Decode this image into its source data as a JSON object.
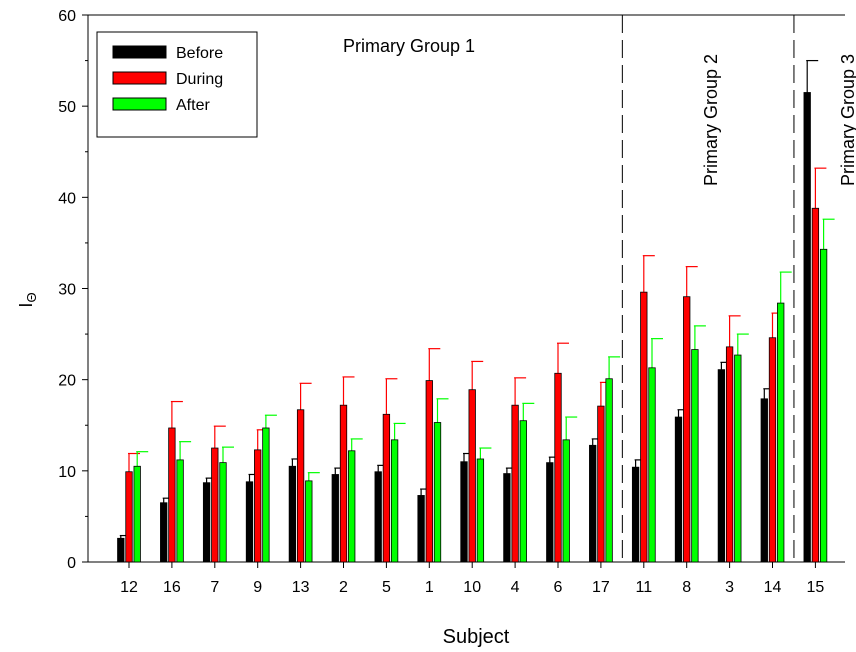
{
  "chart_data": {
    "type": "bar",
    "xlabel": "Subject",
    "ylabel": "I",
    "ylabel_subscript": "Θ",
    "ylim": [
      0,
      60
    ],
    "yticks": [
      0,
      10,
      20,
      30,
      40,
      50,
      60
    ],
    "categories": [
      "12",
      "16",
      "7",
      "9",
      "13",
      "2",
      "5",
      "1",
      "10",
      "4",
      "6",
      "17",
      "11",
      "8",
      "3",
      "14",
      "15"
    ],
    "series": [
      {
        "name": "Before",
        "color": "#000000",
        "values": [
          2.6,
          6.5,
          8.7,
          8.8,
          10.5,
          9.6,
          9.9,
          7.3,
          11.0,
          9.7,
          10.9,
          12.8,
          10.4,
          15.9,
          21.1,
          17.9,
          51.5
        ],
        "errors": [
          0.3,
          0.5,
          0.5,
          0.8,
          0.8,
          0.7,
          0.7,
          0.7,
          0.9,
          0.6,
          0.6,
          0.7,
          0.8,
          0.8,
          0.8,
          1.1,
          3.5
        ]
      },
      {
        "name": "During",
        "color": "#ff0000",
        "values": [
          9.9,
          14.7,
          12.5,
          12.3,
          16.7,
          17.2,
          16.2,
          19.9,
          18.9,
          17.2,
          20.7,
          17.1,
          29.6,
          29.1,
          23.6,
          24.6,
          38.8
        ],
        "errors": [
          2.0,
          2.9,
          2.4,
          2.2,
          2.9,
          3.1,
          3.9,
          3.5,
          3.1,
          3.0,
          3.3,
          2.6,
          4.0,
          3.3,
          3.4,
          2.7,
          4.4
        ]
      },
      {
        "name": "After",
        "color": "#00ff00",
        "values": [
          10.5,
          11.2,
          10.9,
          14.7,
          8.9,
          12.2,
          13.4,
          15.3,
          11.3,
          15.5,
          13.4,
          20.1,
          21.3,
          23.3,
          22.7,
          28.4,
          34.3
        ],
        "errors": [
          1.6,
          2.0,
          1.7,
          1.4,
          0.9,
          1.3,
          1.8,
          2.6,
          1.2,
          1.9,
          2.5,
          2.4,
          3.2,
          2.6,
          2.3,
          3.4,
          3.3
        ]
      }
    ],
    "legend": {
      "placement": "top-left",
      "entries": [
        "Before",
        "During",
        "After"
      ]
    },
    "group_labels": [
      "Primary Group 1",
      "Primary Group 2",
      "Primary Group 3"
    ],
    "group_boundaries_after_category": [
      "17",
      "14"
    ],
    "grid": false
  }
}
